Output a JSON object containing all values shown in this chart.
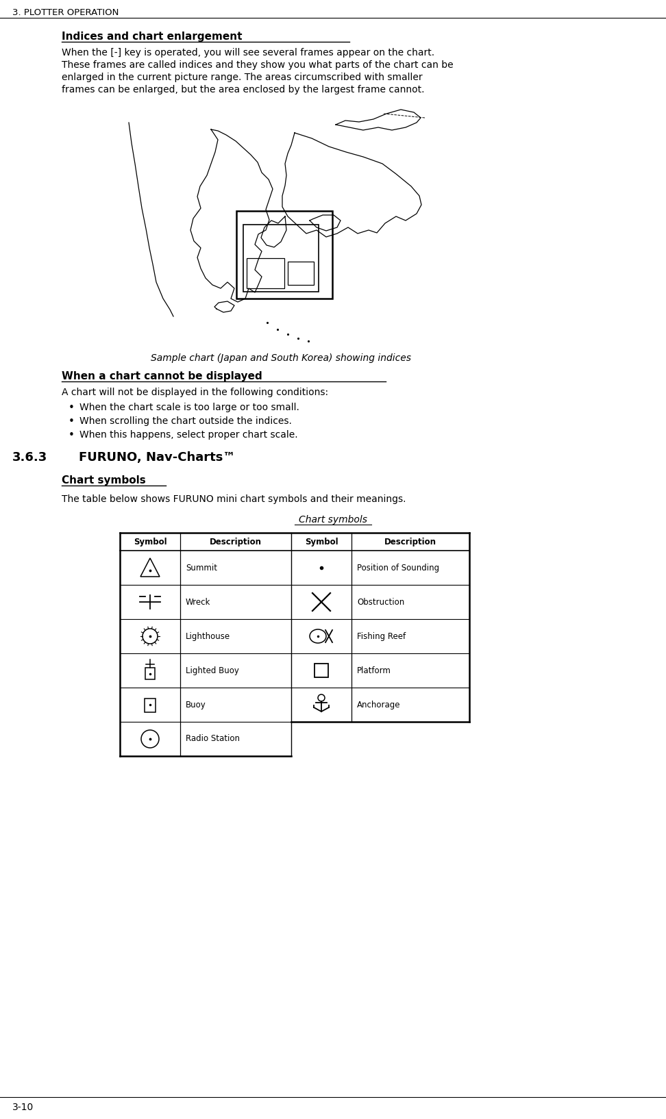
{
  "bg_color": "#ffffff",
  "header_text": "3. PLOTTER OPERATION",
  "section_title": "Indices and chart enlargement",
  "para1_lines": [
    "When the [-] key is operated, you will see several frames appear on the chart.",
    "These frames are called indices and they show you what parts of the chart can be",
    "enlarged in the current picture range. The areas circumscribed with smaller",
    "frames can be enlarged, but the area enclosed by the largest frame cannot."
  ],
  "chart_caption": "Sample chart (Japan and South Korea) showing indices",
  "cannot_title": "When a chart cannot be displayed",
  "cannot_para": "A chart will not be displayed in the following conditions:",
  "bullets": [
    "When the chart scale is too large or too small.",
    "When scrolling the chart outside the indices.",
    "When this happens, select proper chart scale."
  ],
  "section363": "3.6.3",
  "section363_title": "FURUNO, Nav-Charts™",
  "chart_sym_title": "Chart symbols",
  "chart_sym_para": "The table below shows FURUNO mini chart symbols and their meanings.",
  "table_caption": "Chart symbols",
  "table_headers": [
    "Symbol",
    "Description",
    "Symbol",
    "Description"
  ],
  "table_rows_left": [
    "Summit",
    "Wreck",
    "Lighthouse",
    "Lighted Buoy",
    "Buoy",
    "Radio Station"
  ],
  "table_rows_right": [
    "Position of Sounding",
    "Obstruction",
    "Fishing Reef",
    "Platform",
    "Anchorage"
  ],
  "footer_text": "3-10"
}
